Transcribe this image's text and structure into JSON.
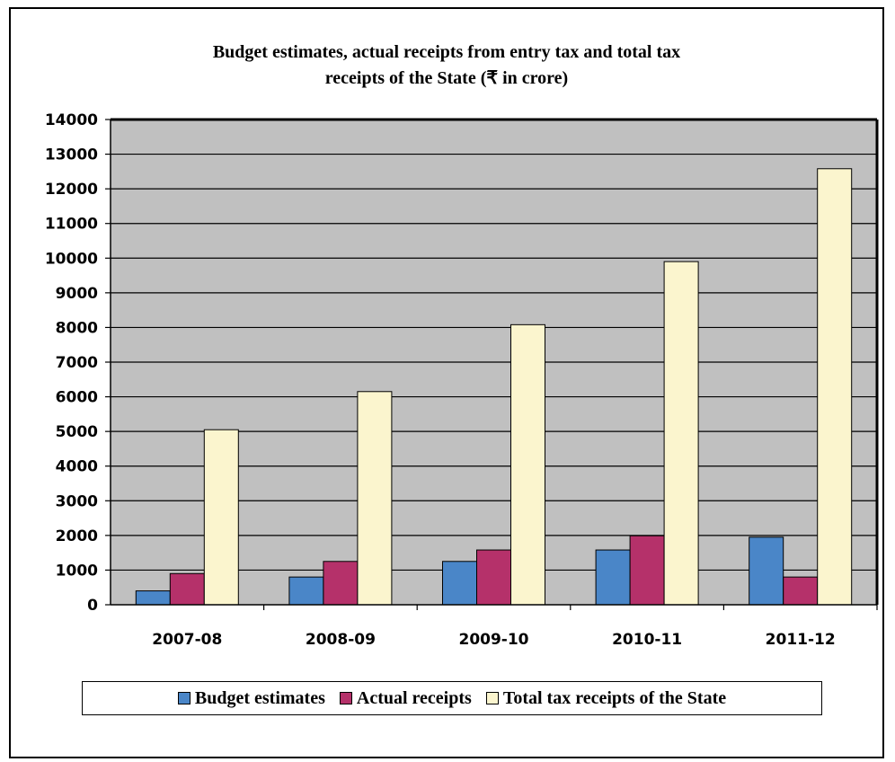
{
  "chart_data": {
    "type": "bar",
    "title_lines": [
      "Budget estimates, actual receipts from entry tax and total tax",
      "receipts of the State  (₹ in crore)"
    ],
    "categories": [
      "2007-08",
      "2008-09",
      "2009-10",
      "2010-11",
      "2011-12"
    ],
    "series": [
      {
        "name": "Budget estimates",
        "color": "#4A86C8",
        "values": [
          400,
          800,
          1250,
          1580,
          1950
        ]
      },
      {
        "name": "Actual receipts",
        "color": "#B5316A",
        "values": [
          900,
          1250,
          1580,
          1990,
          800
        ]
      },
      {
        "name": "Total tax receipts of the State",
        "color": "#FBF5CE",
        "values": [
          5050,
          6150,
          8080,
          9900,
          12580
        ]
      }
    ],
    "ylim": [
      0,
      14000
    ],
    "yticks": [
      0,
      1000,
      2000,
      3000,
      4000,
      5000,
      6000,
      7000,
      8000,
      9000,
      10000,
      11000,
      12000,
      13000,
      14000
    ],
    "grid": true,
    "plot_background": "#C0C0C0",
    "legend_position": "bottom"
  }
}
